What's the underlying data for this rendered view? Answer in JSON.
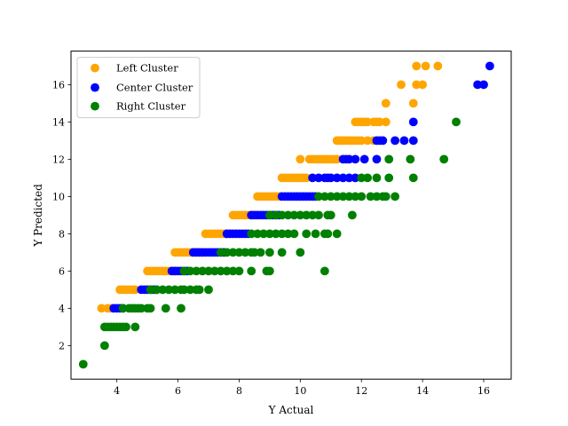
{
  "chart_data": {
    "type": "scatter",
    "xlabel": "Y Actual",
    "ylabel": "Y Predicted",
    "xlim": [
      2.5,
      16.9
    ],
    "ylim": [
      0.2,
      17.8
    ],
    "xticks": [
      4,
      6,
      8,
      10,
      12,
      14,
      16
    ],
    "yticks": [
      2,
      4,
      6,
      8,
      10,
      12,
      14,
      16
    ],
    "grid": false,
    "legend_position": "top-left",
    "series": [
      {
        "name": "Left Cluster",
        "color": "#ffa500",
        "points": [
          [
            3.5,
            4
          ],
          [
            3.7,
            4
          ],
          [
            3.8,
            4
          ],
          [
            4.1,
            5
          ],
          [
            4.2,
            5
          ],
          [
            4.3,
            5
          ],
          [
            4.4,
            5
          ],
          [
            4.5,
            5
          ],
          [
            4.6,
            5
          ],
          [
            5.0,
            6
          ],
          [
            5.1,
            6
          ],
          [
            5.2,
            6
          ],
          [
            5.3,
            6
          ],
          [
            5.4,
            6
          ],
          [
            5.5,
            6
          ],
          [
            5.6,
            6
          ],
          [
            5.7,
            6
          ],
          [
            5.8,
            6
          ],
          [
            5.9,
            6
          ],
          [
            5.9,
            7
          ],
          [
            6.0,
            7
          ],
          [
            6.1,
            7
          ],
          [
            6.2,
            7
          ],
          [
            6.3,
            7
          ],
          [
            6.4,
            7
          ],
          [
            6.5,
            7
          ],
          [
            6.6,
            7
          ],
          [
            6.7,
            7
          ],
          [
            6.8,
            7
          ],
          [
            6.9,
            8
          ],
          [
            7.0,
            8
          ],
          [
            7.1,
            8
          ],
          [
            7.2,
            8
          ],
          [
            7.3,
            8
          ],
          [
            7.4,
            8
          ],
          [
            7.5,
            8
          ],
          [
            7.6,
            8
          ],
          [
            7.7,
            8
          ],
          [
            7.8,
            9
          ],
          [
            7.9,
            9
          ],
          [
            8.0,
            9
          ],
          [
            8.1,
            9
          ],
          [
            8.2,
            9
          ],
          [
            8.3,
            9
          ],
          [
            8.4,
            9
          ],
          [
            8.5,
            9
          ],
          [
            8.6,
            10
          ],
          [
            8.7,
            10
          ],
          [
            8.8,
            10
          ],
          [
            8.9,
            10
          ],
          [
            9.0,
            10
          ],
          [
            9.1,
            10
          ],
          [
            9.2,
            10
          ],
          [
            9.3,
            10
          ],
          [
            9.4,
            11
          ],
          [
            9.5,
            11
          ],
          [
            9.6,
            11
          ],
          [
            9.7,
            11
          ],
          [
            9.8,
            11
          ],
          [
            9.9,
            11
          ],
          [
            10.0,
            11
          ],
          [
            10.1,
            11
          ],
          [
            10.2,
            11
          ],
          [
            10.0,
            12
          ],
          [
            10.3,
            12
          ],
          [
            10.4,
            12
          ],
          [
            10.5,
            12
          ],
          [
            10.6,
            12
          ],
          [
            10.7,
            12
          ],
          [
            10.8,
            12
          ],
          [
            10.9,
            12
          ],
          [
            11.0,
            12
          ],
          [
            11.1,
            12
          ],
          [
            11.2,
            12
          ],
          [
            11.2,
            13
          ],
          [
            11.3,
            13
          ],
          [
            11.4,
            13
          ],
          [
            11.5,
            13
          ],
          [
            11.6,
            13
          ],
          [
            11.7,
            13
          ],
          [
            11.8,
            13
          ],
          [
            11.9,
            13
          ],
          [
            12.0,
            13
          ],
          [
            12.2,
            13
          ],
          [
            12.4,
            13
          ],
          [
            11.8,
            14
          ],
          [
            11.9,
            14
          ],
          [
            12.0,
            14
          ],
          [
            12.1,
            14
          ],
          [
            12.2,
            14
          ],
          [
            12.4,
            14
          ],
          [
            12.5,
            14
          ],
          [
            12.6,
            14
          ],
          [
            12.8,
            14
          ],
          [
            12.8,
            15
          ],
          [
            13.7,
            15
          ],
          [
            13.3,
            16
          ],
          [
            13.8,
            16
          ],
          [
            14.0,
            16
          ],
          [
            13.8,
            17
          ],
          [
            14.1,
            17
          ],
          [
            14.5,
            17
          ]
        ]
      },
      {
        "name": "Center Cluster",
        "color": "#0000ff",
        "points": [
          [
            3.9,
            4
          ],
          [
            4.0,
            4
          ],
          [
            4.1,
            4
          ],
          [
            4.2,
            4
          ],
          [
            4.8,
            5
          ],
          [
            4.9,
            5
          ],
          [
            5.0,
            5
          ],
          [
            5.1,
            5
          ],
          [
            5.2,
            5
          ],
          [
            5.3,
            5
          ],
          [
            5.8,
            6
          ],
          [
            5.9,
            6
          ],
          [
            6.0,
            6
          ],
          [
            6.1,
            6
          ],
          [
            6.2,
            6
          ],
          [
            6.3,
            6
          ],
          [
            6.5,
            7
          ],
          [
            6.6,
            7
          ],
          [
            6.7,
            7
          ],
          [
            6.8,
            7
          ],
          [
            6.9,
            7
          ],
          [
            7.0,
            7
          ],
          [
            7.1,
            7
          ],
          [
            7.2,
            7
          ],
          [
            7.3,
            7
          ],
          [
            7.4,
            7
          ],
          [
            7.5,
            7
          ],
          [
            7.6,
            8
          ],
          [
            7.7,
            8
          ],
          [
            7.8,
            8
          ],
          [
            7.9,
            8
          ],
          [
            8.0,
            8
          ],
          [
            8.1,
            8
          ],
          [
            8.2,
            8
          ],
          [
            8.3,
            8
          ],
          [
            8.4,
            9
          ],
          [
            8.5,
            9
          ],
          [
            8.6,
            9
          ],
          [
            8.7,
            9
          ],
          [
            8.8,
            9
          ],
          [
            8.9,
            9
          ],
          [
            9.0,
            9
          ],
          [
            9.1,
            9
          ],
          [
            9.2,
            9
          ],
          [
            9.3,
            9
          ],
          [
            9.4,
            10
          ],
          [
            9.5,
            10
          ],
          [
            9.6,
            10
          ],
          [
            9.7,
            10
          ],
          [
            9.8,
            10
          ],
          [
            9.9,
            10
          ],
          [
            10.0,
            10
          ],
          [
            10.1,
            10
          ],
          [
            10.2,
            10
          ],
          [
            10.3,
            10
          ],
          [
            10.4,
            10
          ],
          [
            10.5,
            10
          ],
          [
            10.4,
            11
          ],
          [
            10.6,
            11
          ],
          [
            10.8,
            11
          ],
          [
            10.9,
            11
          ],
          [
            11.0,
            11
          ],
          [
            11.2,
            11
          ],
          [
            11.4,
            11
          ],
          [
            11.6,
            11
          ],
          [
            11.8,
            11
          ],
          [
            11.4,
            12
          ],
          [
            11.5,
            12
          ],
          [
            11.6,
            12
          ],
          [
            11.8,
            12
          ],
          [
            12.1,
            12
          ],
          [
            12.5,
            12
          ],
          [
            12.5,
            13
          ],
          [
            12.6,
            13
          ],
          [
            12.7,
            13
          ],
          [
            13.1,
            13
          ],
          [
            13.4,
            13
          ],
          [
            13.7,
            13
          ],
          [
            13.7,
            14
          ],
          [
            15.8,
            16
          ],
          [
            16.0,
            16
          ],
          [
            16.2,
            17
          ]
        ]
      },
      {
        "name": "Right Cluster",
        "color": "#008000",
        "points": [
          [
            2.9,
            1
          ],
          [
            3.6,
            2
          ],
          [
            3.6,
            3
          ],
          [
            3.7,
            3
          ],
          [
            3.8,
            3
          ],
          [
            3.9,
            3
          ],
          [
            4.0,
            3
          ],
          [
            4.1,
            3
          ],
          [
            4.2,
            3
          ],
          [
            4.3,
            3
          ],
          [
            4.6,
            3
          ],
          [
            4.2,
            4
          ],
          [
            4.4,
            4
          ],
          [
            4.5,
            4
          ],
          [
            4.6,
            4
          ],
          [
            4.7,
            4
          ],
          [
            4.8,
            4
          ],
          [
            5.0,
            4
          ],
          [
            5.1,
            4
          ],
          [
            5.6,
            4
          ],
          [
            6.1,
            4
          ],
          [
            5.1,
            5
          ],
          [
            5.3,
            5
          ],
          [
            5.5,
            5
          ],
          [
            5.7,
            5
          ],
          [
            5.9,
            5
          ],
          [
            6.1,
            5
          ],
          [
            6.2,
            5
          ],
          [
            6.4,
            5
          ],
          [
            6.6,
            5
          ],
          [
            6.7,
            5
          ],
          [
            7.0,
            5
          ],
          [
            6.2,
            6
          ],
          [
            6.4,
            6
          ],
          [
            6.6,
            6
          ],
          [
            6.8,
            6
          ],
          [
            7.0,
            6
          ],
          [
            7.2,
            6
          ],
          [
            7.4,
            6
          ],
          [
            7.6,
            6
          ],
          [
            7.8,
            6
          ],
          [
            8.0,
            6
          ],
          [
            8.4,
            6
          ],
          [
            8.9,
            6
          ],
          [
            9.0,
            6
          ],
          [
            10.8,
            6
          ],
          [
            7.4,
            7
          ],
          [
            7.6,
            7
          ],
          [
            7.8,
            7
          ],
          [
            8.0,
            7
          ],
          [
            8.2,
            7
          ],
          [
            8.4,
            7
          ],
          [
            8.5,
            7
          ],
          [
            8.7,
            7
          ],
          [
            9.0,
            7
          ],
          [
            9.4,
            7
          ],
          [
            10.0,
            7
          ],
          [
            8.4,
            8
          ],
          [
            8.6,
            8
          ],
          [
            8.8,
            8
          ],
          [
            9.0,
            8
          ],
          [
            9.2,
            8
          ],
          [
            9.4,
            8
          ],
          [
            9.6,
            8
          ],
          [
            9.8,
            8
          ],
          [
            10.2,
            8
          ],
          [
            10.5,
            8
          ],
          [
            10.8,
            8
          ],
          [
            10.9,
            8
          ],
          [
            11.2,
            8
          ],
          [
            9.0,
            9
          ],
          [
            9.2,
            9
          ],
          [
            9.4,
            9
          ],
          [
            9.6,
            9
          ],
          [
            9.8,
            9
          ],
          [
            10.0,
            9
          ],
          [
            10.2,
            9
          ],
          [
            10.4,
            9
          ],
          [
            10.6,
            9
          ],
          [
            10.9,
            9
          ],
          [
            11.0,
            9
          ],
          [
            11.7,
            9
          ],
          [
            10.6,
            10
          ],
          [
            10.8,
            10
          ],
          [
            11.0,
            10
          ],
          [
            11.2,
            10
          ],
          [
            11.4,
            10
          ],
          [
            11.6,
            10
          ],
          [
            11.8,
            10
          ],
          [
            12.0,
            10
          ],
          [
            12.3,
            10
          ],
          [
            12.5,
            10
          ],
          [
            12.7,
            10
          ],
          [
            12.8,
            10
          ],
          [
            13.1,
            10
          ],
          [
            12.0,
            11
          ],
          [
            12.2,
            11
          ],
          [
            12.5,
            11
          ],
          [
            12.9,
            11
          ],
          [
            13.7,
            11
          ],
          [
            12.9,
            12
          ],
          [
            13.6,
            12
          ],
          [
            14.7,
            12
          ],
          [
            15.1,
            14
          ]
        ]
      }
    ]
  }
}
